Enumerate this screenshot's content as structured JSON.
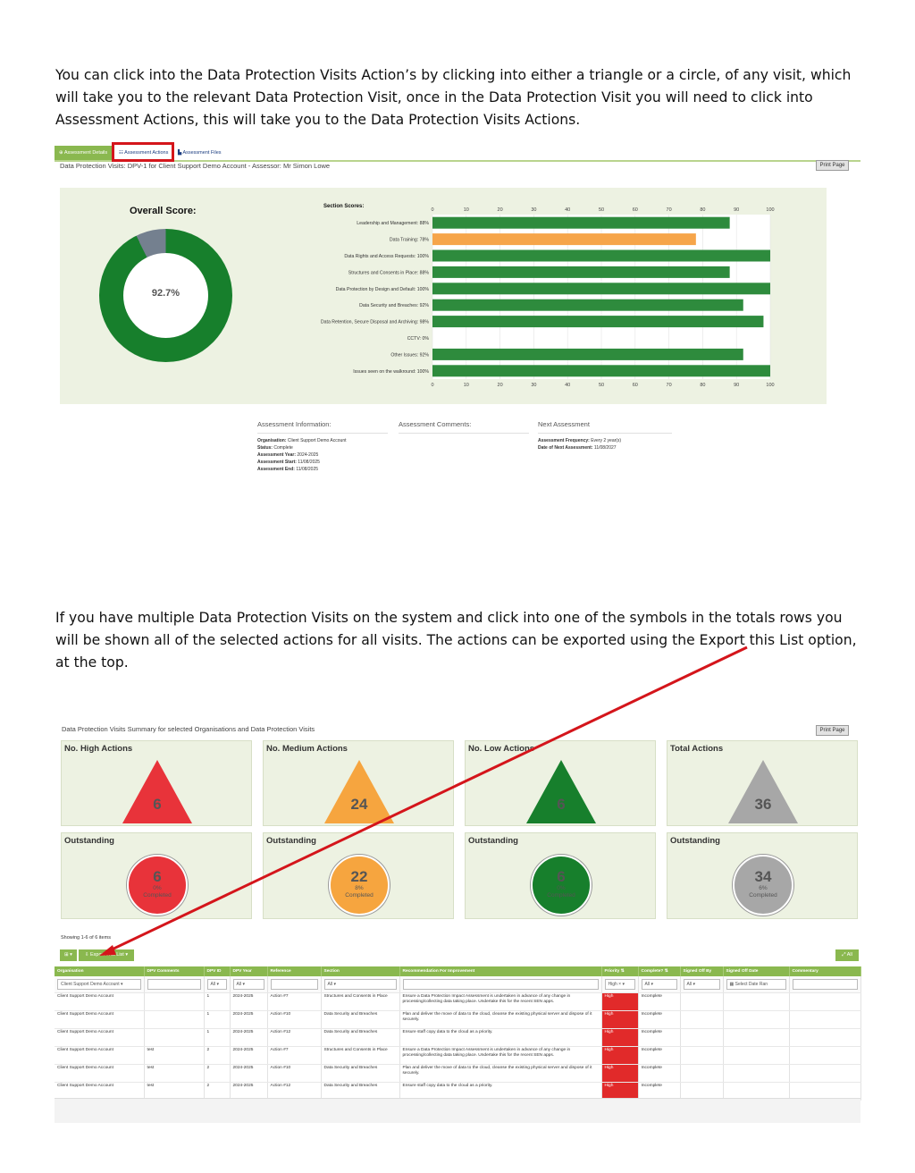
{
  "intro_paragraph": "You can click into the Data Protection Visits Action’s by clicking into either a triangle or a circle, of any visit, which will take you to the relevant Data Protection Visit, once in the Data Protection Visit you will need to click into Assessment Actions, this will take you to the Data Protection Visits Actions.",
  "second_paragraph": "If you have multiple Data Protection Visits on the system and click into one of the symbols in the totals rows you will be shown all of the selected actions for all visits. The actions can be exported using the Export this List option, at the top.",
  "shot1": {
    "tabs": [
      "⊕ Assessment Details",
      "☷ Assessment Actions",
      "▙ Assessment Files"
    ],
    "subtitle": "Data Protection Visits: DPV-1 for Client Support Demo Account - Assessor: Mr Simon Lowe",
    "print_label": "Print Page",
    "overall_title": "Overall Score:",
    "overall_score": "92.7%",
    "overall_value": 92.7,
    "section_title": "Section Scores:",
    "info": {
      "assessment_heading": "Assessment Information:",
      "comments_heading": "Assessment Comments:",
      "next_heading": "Next Assessment",
      "organisation_label": "Organisation:",
      "organisation": "Client Support Demo Account",
      "status_label": "Status:",
      "status": "Complete",
      "year_label": "Assessment Year:",
      "year": "2024-2025",
      "start_label": "Assessment Start:",
      "start": "11/08/2025",
      "end_label": "Assessment End:",
      "end": "11/08/2025",
      "frequency_label": "Assessment Frequency:",
      "frequency": "Every 2 year(s)",
      "next_date_label": "Date of Next Assessment:",
      "next_date": "11/08/2027"
    }
  },
  "chart_data": {
    "type": "bar",
    "orientation": "horizontal",
    "title": "Section Scores:",
    "categories": [
      "Leadership and Management: 88%",
      "Data Training: 78%",
      "Data Rights and Access Requests: 100%",
      "Structures and Consents in Place: 88%",
      "Data Protection by Design and Default: 100%",
      "Data Security and Breaches: 92%",
      "Data Retention, Secure Disposal and Archiving: 98%",
      "CCTV: 0%",
      "Other Issues: 92%",
      "Issues seen on the walkround: 100%"
    ],
    "values": [
      88,
      78,
      100,
      88,
      100,
      92,
      98,
      0,
      92,
      100
    ],
    "bar_colors": [
      "#2e8b3d",
      "#f6a54a",
      "#2e8b3d",
      "#2e8b3d",
      "#2e8b3d",
      "#2e8b3d",
      "#2e8b3d",
      "#2e8b3d",
      "#2e8b3d",
      "#2e8b3d"
    ],
    "xlim": [
      0,
      100
    ],
    "xticks": [
      0,
      10,
      20,
      30,
      40,
      50,
      60,
      70,
      80,
      90,
      100
    ],
    "grid": true
  },
  "shot2": {
    "subtitle": "Data Protection Visits Summary for selected Organisations and Data Protection Visits",
    "print_label": "Print Page",
    "totals": [
      {
        "title": "No. High Actions",
        "count": "6",
        "color": "#e8333a"
      },
      {
        "title": "No. Medium Actions",
        "count": "24",
        "color": "#f6a53f"
      },
      {
        "title": "No. Low Actions",
        "count": "6",
        "color": "#177f2c"
      },
      {
        "title": "Total Actions",
        "count": "36",
        "color": "#a7a7a7"
      }
    ],
    "outstanding": [
      {
        "title": "Outstanding",
        "count": "6",
        "pct": "0%",
        "sub": "Completed",
        "color": "#e8333a"
      },
      {
        "title": "Outstanding",
        "count": "22",
        "pct": "8%",
        "sub": "Completed",
        "color": "#f6a53f"
      },
      {
        "title": "Outstanding",
        "count": "6",
        "pct": "0%",
        "sub": "Completed",
        "color": "#177f2c"
      },
      {
        "title": "Outstanding",
        "count": "34",
        "pct": "6%",
        "sub": "Completed",
        "color": "#a7a7a7"
      }
    ],
    "showing_text": "Showing 1-6 of 6 items",
    "grid_button": "⊞ ▾",
    "export_button": "⇩ Export This List ▾",
    "all_button": "⤢ All",
    "columns": [
      "Organisation",
      "DPV Comments",
      "DPV ID",
      "DPV Year",
      "Reference",
      "Section",
      "Recommendation For Improvement",
      "Priority ⇅",
      "Complete? ⇅",
      "Signed Off By",
      "Signed Off Date",
      "Commentary"
    ],
    "filters": [
      "Client Support Demo Account ▾",
      "",
      "All ▾",
      "All ▾",
      "",
      "All ▾",
      "",
      "High × ▾",
      "All ▾",
      "All ▾",
      "▦  Select Date Ran",
      ""
    ],
    "rows": [
      [
        "Client Support Demo Account",
        "",
        "1",
        "2024-2025",
        "Action #7",
        "Structures and Consents in Place",
        "Ensure a Data Protection Impact Assessment is undertaken in advance of any change in processing/collecting data taking place. Undertake this for the recent SEN apps.",
        "High",
        "Incomplete",
        "",
        "",
        ""
      ],
      [
        "Client Support Demo Account",
        "",
        "1",
        "2024-2025",
        "Action #10",
        "Data Security and Breaches",
        "Plan and deliver the move of data to the cloud, cleanse the existing physical server and dispose of it securely.",
        "High",
        "Incomplete",
        "",
        "",
        ""
      ],
      [
        "Client Support Demo Account",
        "",
        "1",
        "2024-2025",
        "Action #12",
        "Data Security and Breaches",
        "Ensure staff copy data to the cloud as a priority.",
        "High",
        "Incomplete",
        "",
        "",
        ""
      ],
      [
        "Client Support Demo Account",
        "test",
        "2",
        "2024-2025",
        "Action #7",
        "Structures and Consents in Place",
        "Ensure a Data Protection Impact Assessment is undertaken in advance of any change in processing/collecting data taking place. Undertake this for the recent SEN apps.",
        "High",
        "Incomplete",
        "",
        "",
        ""
      ],
      [
        "Client Support Demo Account",
        "test",
        "2",
        "2024-2025",
        "Action #10",
        "Data Security and Breaches",
        "Plan and deliver the move of data to the cloud, cleanse the existing physical server and dispose of it securely.",
        "High",
        "Incomplete",
        "",
        "",
        ""
      ],
      [
        "Client Support Demo Account",
        "test",
        "2",
        "2024-2025",
        "Action #12",
        "Data Security and Breaches",
        "Ensure staff copy data to the cloud as a priority.",
        "High",
        "Incomplete",
        "",
        "",
        ""
      ]
    ]
  },
  "annotation_color": "#d4151b"
}
